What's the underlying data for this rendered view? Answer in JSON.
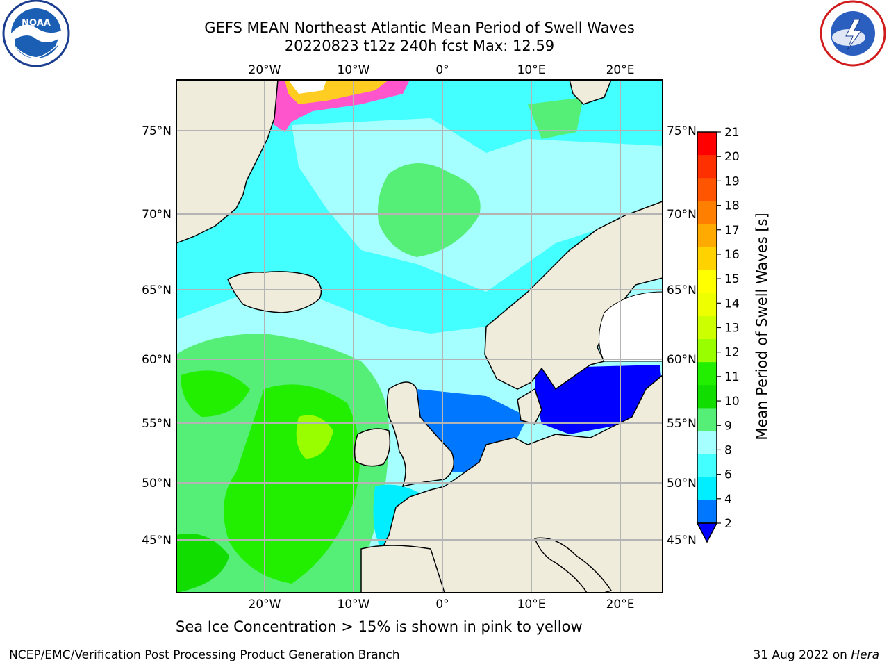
{
  "title": {
    "line1": "GEFS MEAN Northeast Atlantic Mean Period of Swell Waves",
    "line2": "20220823 t12z 240h fcst   Max: 12.59"
  },
  "caption": "Sea Ice Concentration > 15% is shown in pink to yellow",
  "footer": {
    "left": "NCEP/EMC/Verification Post Processing Product Generation Branch",
    "right_date": "31 Aug 2022 on",
    "right_machine": "Hera"
  },
  "map": {
    "lon_labels": [
      "20°W",
      "10°W",
      "0°",
      "10°E",
      "20°E"
    ],
    "lat_labels": [
      "75°N",
      "70°N",
      "65°N",
      "60°N",
      "55°N",
      "50°N",
      "45°N"
    ],
    "colors": {
      "land": "#efecdc",
      "ice_free_land": "#ffffff",
      "grid": "#b4b4b4"
    }
  },
  "colorbar": {
    "label": "Mean Period of Swell Waves [s]",
    "ticks": [
      "21",
      "20",
      "19",
      "18",
      "17",
      "16",
      "15",
      "14",
      "13",
      "12",
      "11",
      "10",
      "9",
      "8",
      "6",
      "4",
      "2"
    ],
    "colors": [
      "#ff0000",
      "#ff3000",
      "#ff5500",
      "#ff8000",
      "#ffaa00",
      "#ffd200",
      "#ffff00",
      "#eeff00",
      "#ccff00",
      "#99ff00",
      "#22ee00",
      "#11dd00",
      "#55ee77",
      "#a6ffff",
      "#44ffff",
      "#00eeff",
      "#0077ff"
    ],
    "min_color": "#0000ff"
  },
  "logos": {
    "left_icon": "noaa-logo",
    "right_icon": "national-weather-service-logo"
  }
}
